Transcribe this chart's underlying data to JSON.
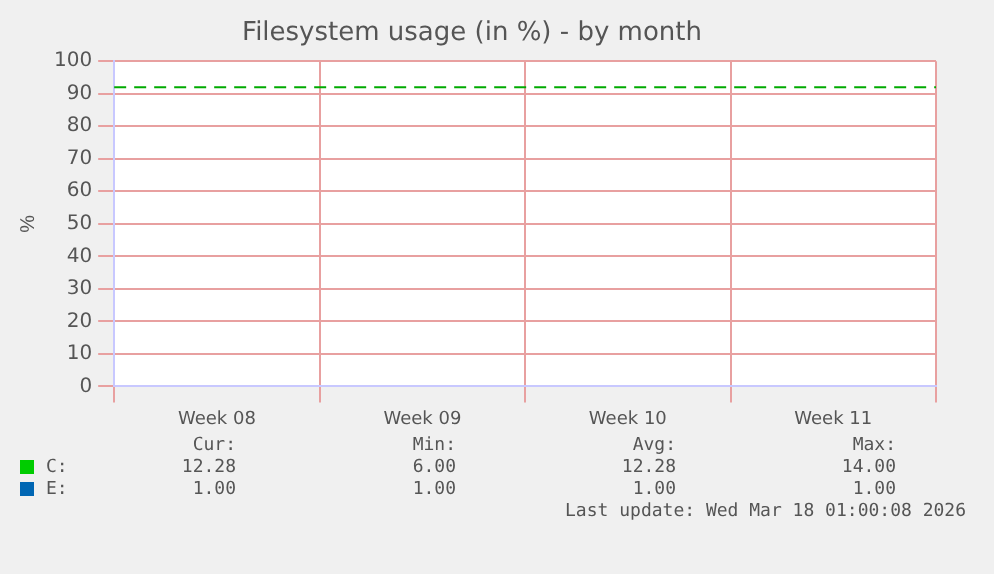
{
  "chart_data": {
    "type": "line",
    "title": "Filesystem usage (in %) - by month",
    "ylabel": "%",
    "categories": [
      "Week 08",
      "Week 09",
      "Week 10",
      "Week 11"
    ],
    "series": [
      {
        "name": "C:",
        "color": "#00cc00",
        "values": [
          null,
          null,
          null,
          null
        ]
      },
      {
        "name": "E:",
        "color": "#0066b3",
        "values": [
          null,
          null,
          null,
          null
        ]
      }
    ],
    "ylim": [
      0,
      100
    ],
    "yticks": [
      0,
      10,
      20,
      30,
      40,
      50,
      60,
      70,
      80,
      90,
      100
    ],
    "grid": true,
    "legend": "bottom",
    "ref_lines": [
      {
        "axis": "y",
        "value": 92,
        "color": "#00aa00",
        "line_style": "dashed"
      }
    ],
    "annotations": [
      "Cur:",
      "Min:",
      "Avg:",
      "Max:",
      "12.28",
      "6.00",
      "12.28",
      "14.00",
      "1.00",
      "1.00",
      "1.00",
      "1.00",
      "Last update: Wed Mar 18 01:00:08 2026"
    ]
  }
}
